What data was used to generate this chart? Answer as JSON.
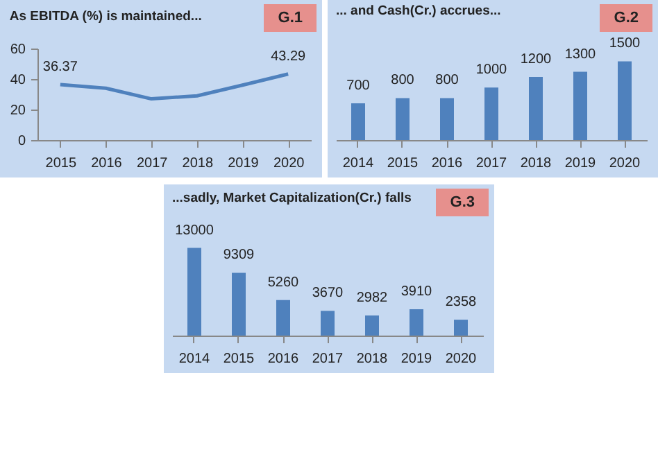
{
  "chart_data": [
    {
      "type": "line",
      "title": "As EBITDA  (%)  is maintained...",
      "annotations": [
        "G.1"
      ],
      "categories": [
        "2015",
        "2016",
        "2017",
        "2018",
        "2019",
        "2020"
      ],
      "values": [
        36.37,
        34,
        27,
        29,
        36,
        43.29
      ],
      "value_labels": [
        "36.37",
        null,
        null,
        null,
        null,
        "43.29"
      ],
      "color": "#4f81bd",
      "ylim": [
        0,
        60
      ],
      "yticks": [
        0,
        20,
        40,
        60
      ],
      "grid": false
    },
    {
      "type": "bar",
      "title": "... and Cash(Cr.) accrues...",
      "annotations": [
        "G.2"
      ],
      "categories": [
        "2014",
        "2015",
        "2016",
        "2017",
        "2018",
        "2019",
        "2020"
      ],
      "values": [
        700,
        800,
        800,
        1000,
        1200,
        1300,
        1500
      ],
      "color": "#4f81bd",
      "data_labels": true
    },
    {
      "type": "bar",
      "title": "...sadly, Market Capitalization(Cr.)  falls",
      "annotations": [
        "G.3"
      ],
      "categories": [
        "2014",
        "2015",
        "2016",
        "2017",
        "2018",
        "2019",
        "2020"
      ],
      "values": [
        13000,
        9309,
        5260,
        3670,
        2982,
        3910,
        2358
      ],
      "color": "#4f81bd",
      "data_labels": true
    }
  ]
}
